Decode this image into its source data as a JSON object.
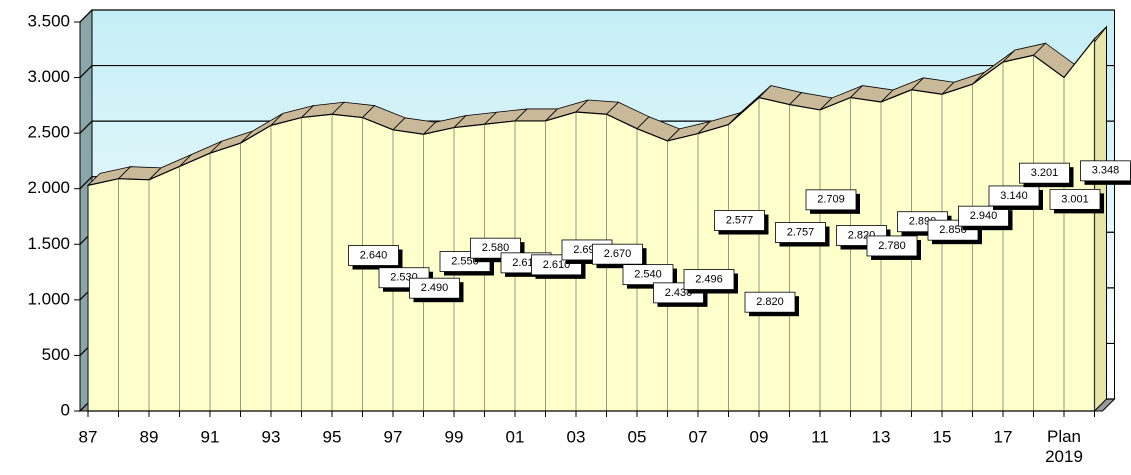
{
  "chart_data": {
    "type": "area3d",
    "categories": [
      "87",
      null,
      "89",
      null,
      "91",
      null,
      "93",
      null,
      "95",
      null,
      "97",
      null,
      "99",
      null,
      "01",
      null,
      "03",
      null,
      "05",
      null,
      "07",
      null,
      "09",
      null,
      "11",
      null,
      "13",
      null,
      "15",
      null,
      "17",
      null,
      "Plan 2019",
      null
    ],
    "values": [
      2030,
      2090,
      2080,
      2200,
      2320,
      2410,
      2570,
      2640,
      2670,
      2640,
      2530,
      2490,
      2550,
      2580,
      2610,
      2610,
      2690,
      2670,
      2540,
      2430,
      2496,
      2577,
      2820,
      2757,
      2709,
      2820,
      2780,
      2890,
      2850,
      2940,
      3140,
      3201,
      3001,
      3348
    ],
    "value_labels": [
      null,
      null,
      null,
      null,
      null,
      null,
      null,
      null,
      null,
      "2.640",
      "2.530",
      "2.490",
      "2.550",
      "2.580",
      "2.610",
      "2.610",
      "2.690",
      "2.670",
      "2.540",
      "2.430",
      "2.496",
      "2.577",
      "2.820",
      "2.757",
      "2.709",
      "2.820",
      "2.780",
      "2.890",
      "2.850",
      "2.940",
      "3.140",
      "3.201",
      "3.001",
      "3.348"
    ],
    "color": "#ffffcc",
    "top_color": "#c9b999",
    "wall_color": "#c4eef6",
    "ylim": [
      0,
      3500
    ],
    "yticks": [
      0,
      500,
      {
        "value": 1000,
        "label": "1.000"
      },
      {
        "value": 1500,
        "label": "1.500"
      },
      {
        "value": 2000,
        "label": "2.000"
      },
      {
        "value": 2500,
        "label": "2.500"
      },
      {
        "value": 3000,
        "label": "3.000"
      },
      {
        "value": 3500,
        "label": "3.500"
      }
    ],
    "grid": true
  }
}
